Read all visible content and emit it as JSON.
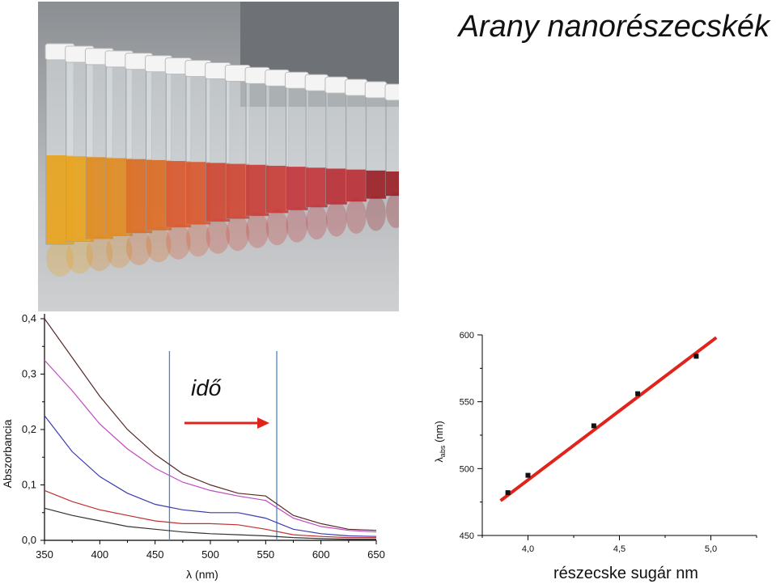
{
  "title": "Arany nanorészecskék",
  "photo": {
    "subject": "vials-of-gold-nanoparticle-solutions",
    "vial_colors": [
      "#e8a21a",
      "#e08a1e",
      "#db6a1f",
      "#d9552a",
      "#cf4430",
      "#c93a34",
      "#c33338",
      "#b92c33",
      "#9b1d24"
    ]
  },
  "annotation": {
    "text": "idő",
    "arrow_color": "#e0241b"
  },
  "chart_data": [
    {
      "type": "line",
      "xlabel": "λ (nm)",
      "ylabel": "Abszorbancia",
      "xlim": [
        350,
        650
      ],
      "ylim": [
        0.0,
        0.4
      ],
      "xticks": [
        "350",
        "400",
        "450",
        "500",
        "550",
        "600",
        "650"
      ],
      "yticks": [
        "0,0",
        "0,1",
        "0,2",
        "0,3",
        "0,4"
      ],
      "vlines": [
        463,
        560
      ],
      "series": [
        {
          "color": "#5a2a2a",
          "x": [
            350,
            375,
            400,
            425,
            450,
            475,
            500,
            525,
            550,
            575,
            600,
            625,
            650
          ],
          "y": [
            0.4,
            0.33,
            0.26,
            0.2,
            0.155,
            0.12,
            0.1,
            0.085,
            0.08,
            0.045,
            0.03,
            0.02,
            0.018
          ]
        },
        {
          "color": "#c04ac0",
          "x": [
            350,
            375,
            400,
            425,
            450,
            475,
            500,
            525,
            550,
            575,
            600,
            625,
            650
          ],
          "y": [
            0.325,
            0.27,
            0.21,
            0.165,
            0.13,
            0.105,
            0.09,
            0.08,
            0.072,
            0.04,
            0.025,
            0.018,
            0.015
          ]
        },
        {
          "color": "#3a3ab0",
          "x": [
            350,
            375,
            400,
            425,
            450,
            475,
            500,
            525,
            550,
            575,
            600,
            625,
            650
          ],
          "y": [
            0.225,
            0.16,
            0.115,
            0.085,
            0.065,
            0.055,
            0.05,
            0.05,
            0.04,
            0.02,
            0.012,
            0.008,
            0.007
          ]
        },
        {
          "color": "#c03030",
          "x": [
            350,
            375,
            400,
            425,
            450,
            475,
            500,
            525,
            550,
            575,
            600,
            625,
            650
          ],
          "y": [
            0.09,
            0.07,
            0.055,
            0.045,
            0.035,
            0.03,
            0.03,
            0.028,
            0.02,
            0.01,
            0.007,
            0.005,
            0.005
          ]
        },
        {
          "color": "#333333",
          "x": [
            350,
            375,
            400,
            425,
            450,
            475,
            500,
            525,
            550,
            575,
            600,
            625,
            650
          ],
          "y": [
            0.058,
            0.045,
            0.035,
            0.025,
            0.02,
            0.015,
            0.012,
            0.01,
            0.008,
            0.005,
            0.003,
            0.002,
            0.002
          ]
        }
      ]
    },
    {
      "type": "scatter",
      "xlabel": "részecske sugár nm",
      "ylabel": "λ",
      "ylabel_sub": "abs",
      "ylabel_unit": "(nm)",
      "xlim": [
        3.75,
        5.25
      ],
      "ylim": [
        450,
        600
      ],
      "xticks": [
        "4,0",
        "4,5",
        "5,0"
      ],
      "yticks": [
        "450",
        "500",
        "550",
        "600"
      ],
      "points": [
        {
          "x": 3.89,
          "y": 482
        },
        {
          "x": 4.0,
          "y": 495
        },
        {
          "x": 4.36,
          "y": 532
        },
        {
          "x": 4.6,
          "y": 556
        },
        {
          "x": 4.92,
          "y": 584
        }
      ],
      "fit": {
        "color": "#e0241b",
        "x": [
          3.85,
          5.03
        ],
        "y": [
          476,
          598
        ]
      }
    }
  ]
}
